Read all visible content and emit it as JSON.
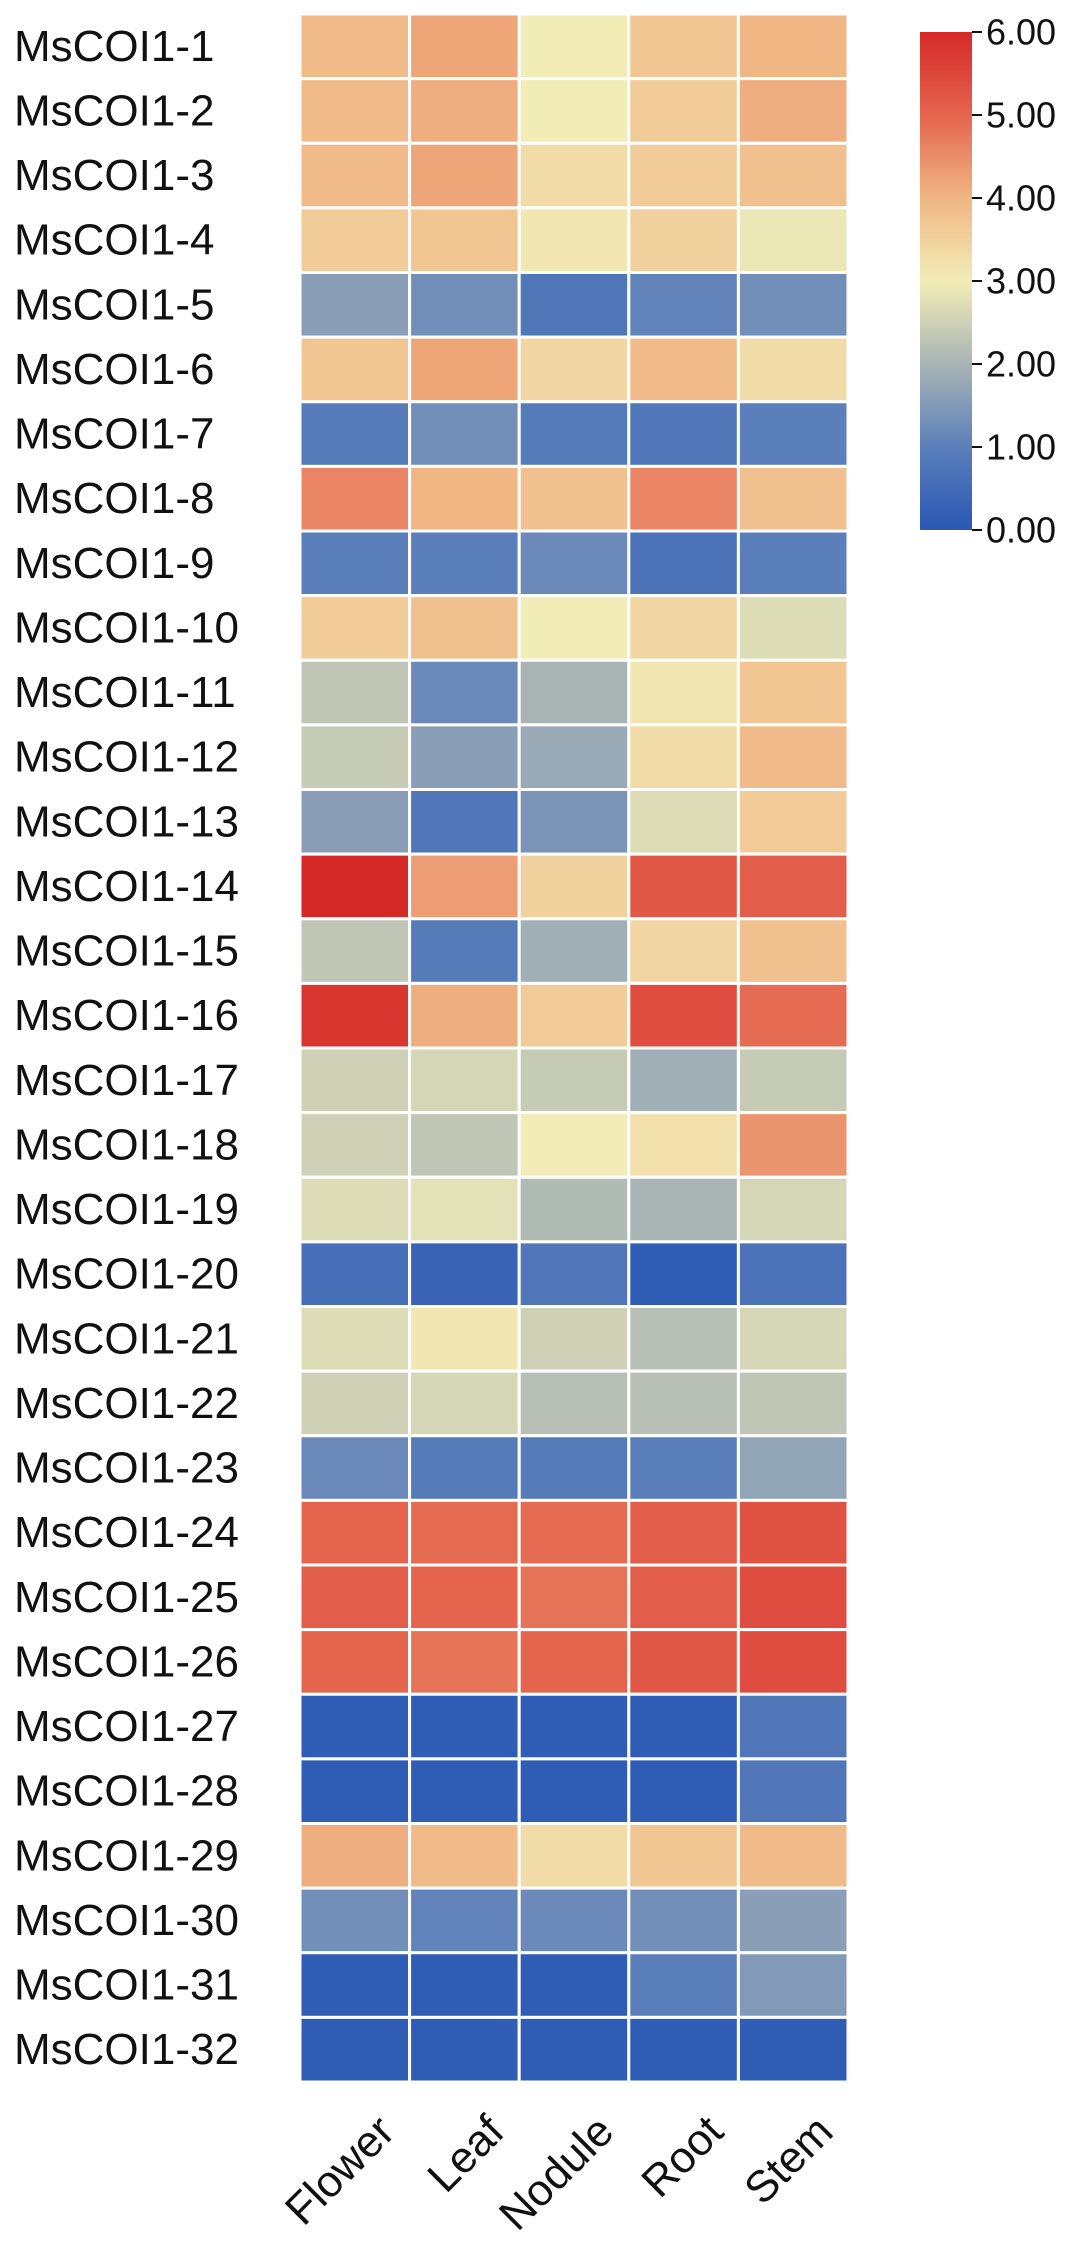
{
  "chart_data": {
    "type": "heatmap",
    "rows": [
      "MsCOI1-1",
      "MsCOI1-2",
      "MsCOI1-3",
      "MsCOI1-4",
      "MsCOI1-5",
      "MsCOI1-6",
      "MsCOI1-7",
      "MsCOI1-8",
      "MsCOI1-9",
      "MsCOI1-10",
      "MsCOI1-11",
      "MsCOI1-12",
      "MsCOI1-13",
      "MsCOI1-14",
      "MsCOI1-15",
      "MsCOI1-16",
      "MsCOI1-17",
      "MsCOI1-18",
      "MsCOI1-19",
      "MsCOI1-20",
      "MsCOI1-21",
      "MsCOI1-22",
      "MsCOI1-23",
      "MsCOI1-24",
      "MsCOI1-25",
      "MsCOI1-26",
      "MsCOI1-27",
      "MsCOI1-28",
      "MsCOI1-29",
      "MsCOI1-30",
      "MsCOI1-31",
      "MsCOI1-32"
    ],
    "columns": [
      "Flower",
      "Leaf",
      "Nodule",
      "Root",
      "Stem"
    ],
    "values": [
      [
        3.9,
        4.2,
        3.0,
        3.7,
        4.0
      ],
      [
        3.9,
        4.1,
        3.0,
        3.6,
        4.1
      ],
      [
        3.9,
        4.2,
        3.3,
        3.6,
        3.8
      ],
      [
        3.6,
        3.7,
        3.1,
        3.5,
        2.9
      ],
      [
        1.6,
        1.3,
        0.8,
        1.1,
        1.3
      ],
      [
        3.7,
        4.2,
        3.4,
        3.9,
        3.3
      ],
      [
        0.9,
        1.3,
        0.9,
        0.8,
        1.0
      ],
      [
        4.6,
        4.0,
        3.8,
        4.6,
        3.8
      ],
      [
        1.0,
        1.0,
        1.2,
        0.7,
        1.0
      ],
      [
        3.6,
        3.8,
        3.0,
        3.4,
        2.7
      ],
      [
        2.3,
        1.2,
        2.0,
        3.1,
        3.7
      ],
      [
        2.4,
        1.6,
        1.8,
        3.3,
        3.9
      ],
      [
        1.6,
        0.8,
        1.4,
        2.7,
        3.6
      ],
      [
        6.0,
        4.3,
        3.5,
        5.2,
        5.1
      ],
      [
        2.3,
        0.9,
        1.9,
        3.4,
        3.8
      ],
      [
        5.8,
        4.1,
        3.6,
        5.4,
        4.9
      ],
      [
        2.5,
        2.6,
        2.4,
        1.9,
        2.4
      ],
      [
        2.5,
        2.3,
        3.0,
        3.2,
        4.4
      ],
      [
        2.7,
        2.8,
        2.1,
        2.0,
        2.6
      ],
      [
        0.6,
        0.3,
        0.8,
        0.1,
        0.7
      ],
      [
        2.7,
        3.1,
        2.5,
        2.2,
        2.6
      ],
      [
        2.5,
        2.6,
        2.2,
        2.2,
        2.3
      ],
      [
        1.2,
        0.9,
        0.9,
        1.0,
        1.7
      ],
      [
        5.0,
        4.9,
        4.9,
        5.1,
        5.3
      ],
      [
        5.1,
        5.0,
        4.8,
        5.1,
        5.4
      ],
      [
        5.0,
        4.8,
        5.0,
        5.2,
        5.4
      ],
      [
        0.1,
        0.1,
        0.1,
        0.1,
        0.8
      ],
      [
        0.1,
        0.1,
        0.1,
        0.1,
        0.8
      ],
      [
        4.1,
        3.9,
        3.3,
        3.7,
        3.9
      ],
      [
        1.3,
        1.1,
        1.2,
        1.3,
        1.6
      ],
      [
        0.1,
        0.1,
        0.1,
        1.0,
        1.5
      ],
      [
        0.1,
        0.1,
        0.1,
        0.1,
        0.1
      ]
    ],
    "colorbar": {
      "min": 0,
      "max": 6,
      "ticks": [
        "0.00",
        "1.00",
        "2.00",
        "3.00",
        "4.00",
        "5.00",
        "6.00"
      ],
      "colors": [
        "#2a58b4",
        "#5b7fba",
        "#a9b5b5",
        "#f2ecb7",
        "#f0b684",
        "#e4644e",
        "#d62a29"
      ],
      "position": "top-right"
    }
  }
}
